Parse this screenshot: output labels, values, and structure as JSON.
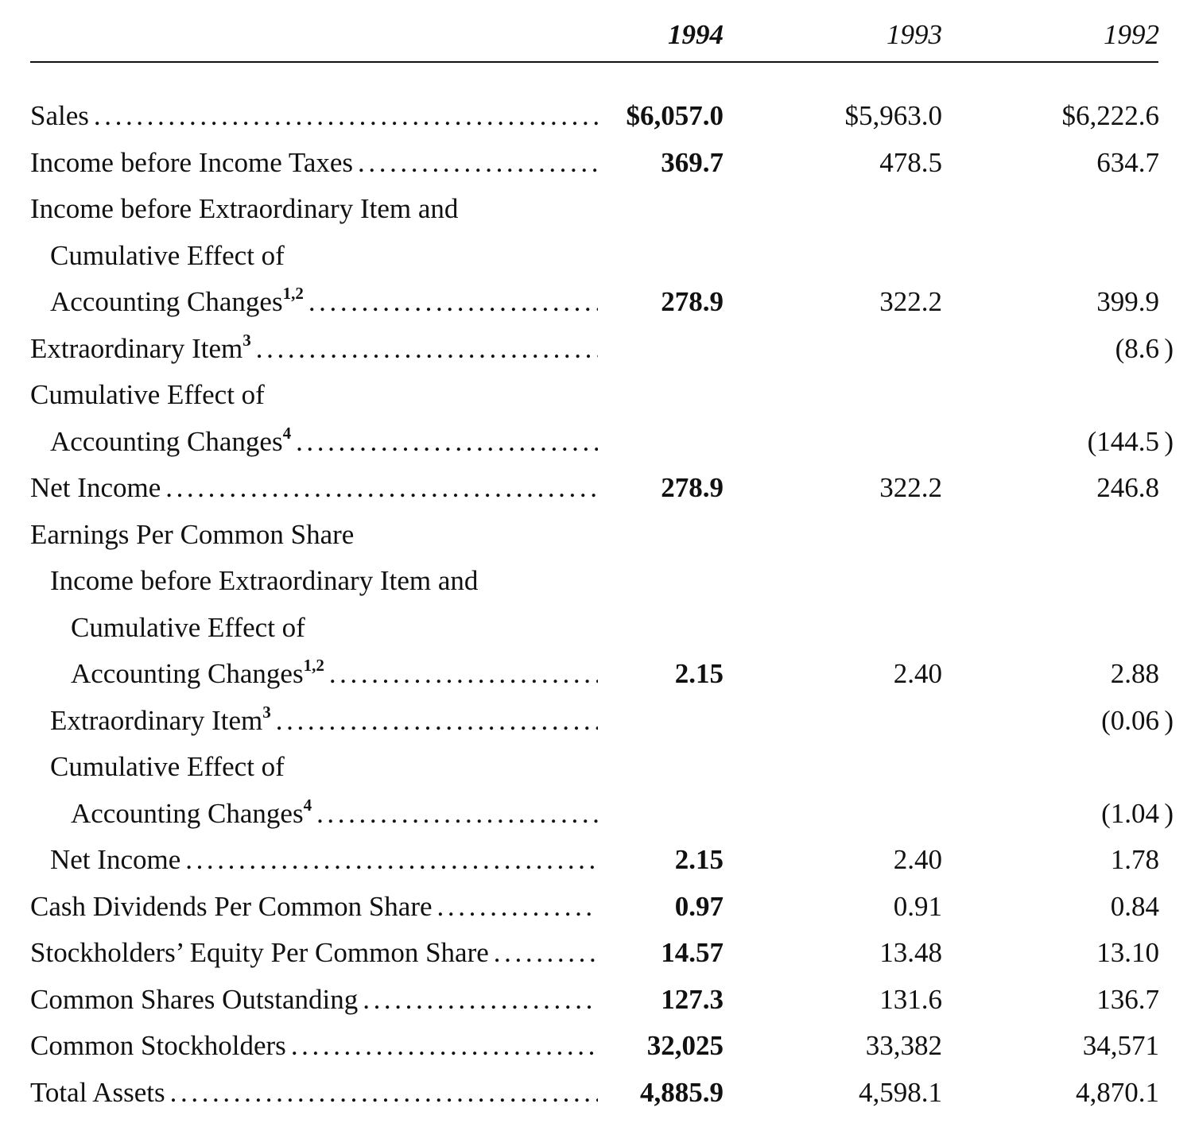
{
  "header": {
    "years": [
      "1994",
      "1993",
      "1992"
    ]
  },
  "rows": [
    {
      "label": "Sales",
      "sup": "",
      "indent": 0,
      "dots": true,
      "values": [
        "$6,057.0",
        "$5,963.0",
        "$6,222.6"
      ]
    },
    {
      "label": "Income before Income Taxes",
      "sup": "",
      "indent": 0,
      "dots": true,
      "values": [
        "369.7",
        "478.5",
        "634.7"
      ]
    },
    {
      "label": "Income before Extraordinary Item and",
      "sup": "",
      "indent": 0,
      "dots": false,
      "values": [
        "",
        "",
        ""
      ]
    },
    {
      "label": "Cumulative Effect of",
      "sup": "",
      "indent": 1,
      "dots": false,
      "values": [
        "",
        "",
        ""
      ]
    },
    {
      "label": "Accounting Changes",
      "sup": "1,2",
      "indent": 1,
      "dots": true,
      "values": [
        "278.9",
        "322.2",
        "399.9"
      ]
    },
    {
      "label": "Extraordinary Item",
      "sup": "3",
      "indent": 0,
      "dots": true,
      "values": [
        "",
        "",
        "(8.6)"
      ]
    },
    {
      "label": "Cumulative Effect of",
      "sup": "",
      "indent": 0,
      "dots": false,
      "values": [
        "",
        "",
        ""
      ]
    },
    {
      "label": "Accounting Changes",
      "sup": "4",
      "indent": 1,
      "dots": true,
      "values": [
        "",
        "",
        "(144.5)"
      ]
    },
    {
      "label": "Net Income",
      "sup": "",
      "indent": 0,
      "dots": true,
      "values": [
        "278.9",
        "322.2",
        "246.8"
      ]
    },
    {
      "label": "Earnings Per Common Share",
      "sup": "",
      "indent": 0,
      "dots": false,
      "values": [
        "",
        "",
        ""
      ]
    },
    {
      "label": "Income before Extraordinary Item and",
      "sup": "",
      "indent": 1,
      "dots": false,
      "values": [
        "",
        "",
        ""
      ]
    },
    {
      "label": "Cumulative Effect of",
      "sup": "",
      "indent": 2,
      "dots": false,
      "values": [
        "",
        "",
        ""
      ]
    },
    {
      "label": "Accounting Changes",
      "sup": "1,2",
      "indent": 2,
      "dots": true,
      "values": [
        "2.15",
        "2.40",
        "2.88"
      ]
    },
    {
      "label": "Extraordinary Item",
      "sup": "3",
      "indent": 1,
      "dots": true,
      "values": [
        "",
        "",
        "(0.06)"
      ]
    },
    {
      "label": "Cumulative Effect of",
      "sup": "",
      "indent": 1,
      "dots": false,
      "values": [
        "",
        "",
        ""
      ]
    },
    {
      "label": "Accounting Changes",
      "sup": "4",
      "indent": 2,
      "dots": true,
      "values": [
        "",
        "",
        "(1.04)"
      ]
    },
    {
      "label": "Net Income",
      "sup": "",
      "indent": 1,
      "dots": true,
      "values": [
        "2.15",
        "2.40",
        "1.78"
      ]
    },
    {
      "label": "Cash Dividends Per Common Share",
      "sup": "",
      "indent": 0,
      "dots": true,
      "values": [
        "0.97",
        "0.91",
        "0.84"
      ]
    },
    {
      "label": "Stockholders’ Equity Per Common Share",
      "sup": "",
      "indent": 0,
      "dots": true,
      "values": [
        "14.57",
        "13.48",
        "13.10"
      ]
    },
    {
      "label": "Common Shares Outstanding",
      "sup": "",
      "indent": 0,
      "dots": true,
      "values": [
        "127.3",
        "131.6",
        "136.7"
      ]
    },
    {
      "label": "Common Stockholders",
      "sup": "",
      "indent": 0,
      "dots": true,
      "values": [
        "32,025",
        "33,382",
        "34,571"
      ]
    },
    {
      "label": "Total Assets",
      "sup": "",
      "indent": 0,
      "dots": true,
      "values": [
        "4,885.9",
        "4,598.1",
        "4,870.1"
      ]
    }
  ]
}
